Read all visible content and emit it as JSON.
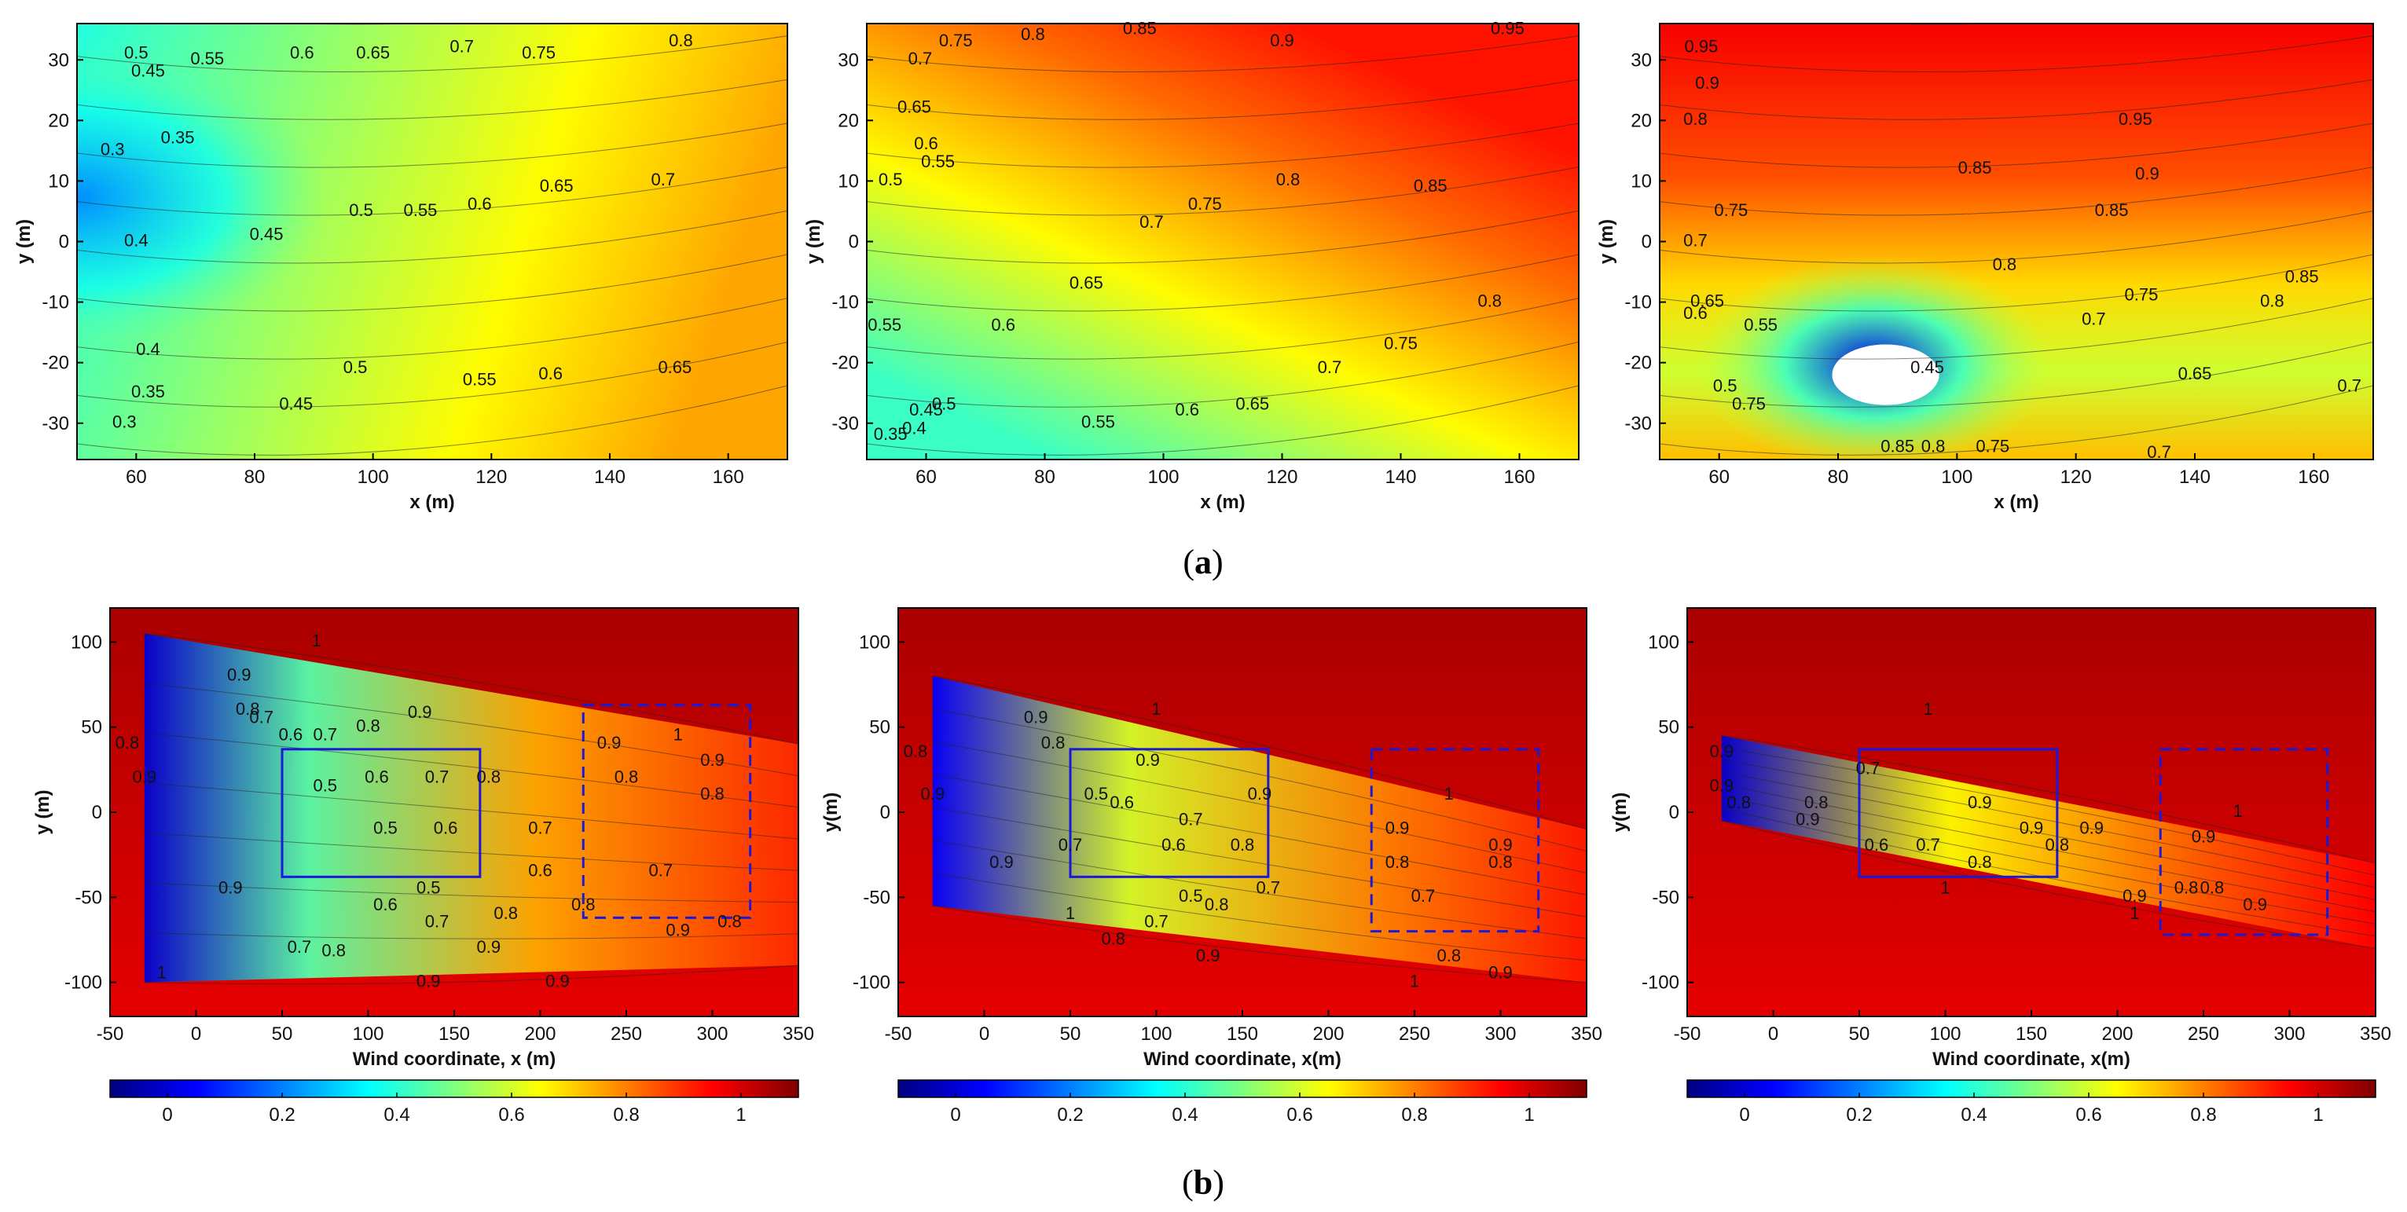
{
  "figure": {
    "caption_a": {
      "open": "(",
      "letter": "a",
      "close": ")"
    },
    "caption_b": {
      "open": "(",
      "letter": "b",
      "close": ")"
    }
  },
  "colors": {
    "colormap": [
      "#00007f",
      "#0000ff",
      "#007fff",
      "#00ffff",
      "#7fff7f",
      "#ffff00",
      "#ff7f00",
      "#ff0000",
      "#7f0000"
    ],
    "rectangle": "#1a1ad6"
  },
  "chart_data": [
    {
      "id": "a1",
      "type": "contour",
      "title": "",
      "xlabel": "x (m)",
      "ylabel": "y (m)",
      "xlim": [
        50,
        170
      ],
      "ylim": [
        -36,
        36
      ],
      "xticks": [
        60,
        80,
        100,
        120,
        140,
        160
      ],
      "yticks": [
        30,
        20,
        10,
        0,
        -10,
        -20,
        -30
      ],
      "field_range": [
        0.25,
        0.8
      ],
      "min_point": [
        52,
        12
      ],
      "contour_labels": [
        {
          "text": "0.5",
          "x": 60,
          "y": 31
        },
        {
          "text": "0.45",
          "x": 62,
          "y": 28
        },
        {
          "text": "0.55",
          "x": 72,
          "y": 30
        },
        {
          "text": "0.6",
          "x": 88,
          "y": 31
        },
        {
          "text": "0.65",
          "x": 100,
          "y": 31
        },
        {
          "text": "0.7",
          "x": 115,
          "y": 32
        },
        {
          "text": "0.75",
          "x": 128,
          "y": 31
        },
        {
          "text": "0.8",
          "x": 152,
          "y": 33
        },
        {
          "text": "0.35",
          "x": 67,
          "y": 17
        },
        {
          "text": "0.3",
          "x": 56,
          "y": 15
        },
        {
          "text": "0.4",
          "x": 60,
          "y": 0
        },
        {
          "text": "0.45",
          "x": 82,
          "y": 1
        },
        {
          "text": "0.5",
          "x": 98,
          "y": 5
        },
        {
          "text": "0.55",
          "x": 108,
          "y": 5
        },
        {
          "text": "0.6",
          "x": 118,
          "y": 6
        },
        {
          "text": "0.65",
          "x": 131,
          "y": 9
        },
        {
          "text": "0.7",
          "x": 149,
          "y": 10
        },
        {
          "text": "0.4",
          "x": 62,
          "y": -18
        },
        {
          "text": "0.35",
          "x": 62,
          "y": -25
        },
        {
          "text": "0.3",
          "x": 58,
          "y": -30
        },
        {
          "text": "0.45",
          "x": 87,
          "y": -27
        },
        {
          "text": "0.5",
          "x": 97,
          "y": -21
        },
        {
          "text": "0.55",
          "x": 118,
          "y": -23
        },
        {
          "text": "0.6",
          "x": 130,
          "y": -22
        },
        {
          "text": "0.65",
          "x": 151,
          "y": -21
        }
      ]
    },
    {
      "id": "a2",
      "type": "contour",
      "title": "",
      "xlabel": "x (m)",
      "ylabel": "y (m)",
      "xlim": [
        50,
        170
      ],
      "ylim": [
        -36,
        36
      ],
      "xticks": [
        60,
        80,
        100,
        120,
        140,
        160
      ],
      "yticks": [
        30,
        20,
        10,
        0,
        -10,
        -20,
        -30
      ],
      "field_range": [
        0.35,
        0.95
      ],
      "contour_labels": [
        {
          "text": "0.75",
          "x": 65,
          "y": 33
        },
        {
          "text": "0.8",
          "x": 78,
          "y": 34
        },
        {
          "text": "0.85",
          "x": 96,
          "y": 35
        },
        {
          "text": "0.9",
          "x": 120,
          "y": 33
        },
        {
          "text": "0.95",
          "x": 158,
          "y": 35
        },
        {
          "text": "0.7",
          "x": 59,
          "y": 30
        },
        {
          "text": "0.65",
          "x": 58,
          "y": 22
        },
        {
          "text": "0.6",
          "x": 60,
          "y": 16
        },
        {
          "text": "0.55",
          "x": 62,
          "y": 13
        },
        {
          "text": "0.5",
          "x": 54,
          "y": 10
        },
        {
          "text": "0.7",
          "x": 98,
          "y": 3
        },
        {
          "text": "0.75",
          "x": 107,
          "y": 6
        },
        {
          "text": "0.8",
          "x": 121,
          "y": 10
        },
        {
          "text": "0.85",
          "x": 145,
          "y": 9
        },
        {
          "text": "0.65",
          "x": 87,
          "y": -7
        },
        {
          "text": "0.6",
          "x": 73,
          "y": -14
        },
        {
          "text": "0.55",
          "x": 53,
          "y": -14
        },
        {
          "text": "0.5",
          "x": 63,
          "y": -27
        },
        {
          "text": "0.45",
          "x": 60,
          "y": -28
        },
        {
          "text": "0.4",
          "x": 58,
          "y": -31
        },
        {
          "text": "0.35",
          "x": 54,
          "y": -32
        },
        {
          "text": "0.8",
          "x": 155,
          "y": -10
        },
        {
          "text": "0.75",
          "x": 140,
          "y": -17
        },
        {
          "text": "0.7",
          "x": 128,
          "y": -21
        },
        {
          "text": "0.65",
          "x": 115,
          "y": -27
        },
        {
          "text": "0.6",
          "x": 104,
          "y": -28
        },
        {
          "text": "0.55",
          "x": 89,
          "y": -30
        }
      ]
    },
    {
      "id": "a3",
      "type": "contour",
      "title": "",
      "xlabel": "x (m)",
      "ylabel": "y (m)",
      "xlim": [
        50,
        170
      ],
      "ylim": [
        -36,
        36
      ],
      "xticks": [
        60,
        80,
        100,
        120,
        140,
        160
      ],
      "yticks": [
        30,
        20,
        10,
        0,
        -10,
        -20,
        -30
      ],
      "field_range": [
        0.0,
        0.95
      ],
      "blank_region": {
        "cx": 88,
        "cy": -22,
        "rx": 9,
        "ry": 5
      },
      "contour_labels": [
        {
          "text": "0.95",
          "x": 57,
          "y": 32
        },
        {
          "text": "0.9",
          "x": 58,
          "y": 26
        },
        {
          "text": "0.8",
          "x": 56,
          "y": 20
        },
        {
          "text": "0.75",
          "x": 62,
          "y": 5
        },
        {
          "text": "0.7",
          "x": 56,
          "y": 0
        },
        {
          "text": "0.95",
          "x": 130,
          "y": 20
        },
        {
          "text": "0.9",
          "x": 132,
          "y": 11
        },
        {
          "text": "0.85",
          "x": 103,
          "y": 12
        },
        {
          "text": "0.85",
          "x": 126,
          "y": 5
        },
        {
          "text": "0.8",
          "x": 108,
          "y": -4
        },
        {
          "text": "0.85",
          "x": 158,
          "y": -6
        },
        {
          "text": "0.8",
          "x": 153,
          "y": -10
        },
        {
          "text": "0.75",
          "x": 131,
          "y": -9
        },
        {
          "text": "0.7",
          "x": 123,
          "y": -13
        },
        {
          "text": "0.65",
          "x": 58,
          "y": -10
        },
        {
          "text": "0.6",
          "x": 56,
          "y": -12
        },
        {
          "text": "0.55",
          "x": 67,
          "y": -14
        },
        {
          "text": "0.65",
          "x": 140,
          "y": -22
        },
        {
          "text": "0.5",
          "x": 61,
          "y": -24
        },
        {
          "text": "0.45",
          "x": 95,
          "y": -21
        },
        {
          "text": "0.75",
          "x": 65,
          "y": -27
        },
        {
          "text": "0.85",
          "x": 90,
          "y": -34
        },
        {
          "text": "0.8",
          "x": 96,
          "y": -34
        },
        {
          "text": "0.75",
          "x": 106,
          "y": -34
        },
        {
          "text": "0.7",
          "x": 134,
          "y": -35
        },
        {
          "text": "0.7",
          "x": 166,
          "y": -24
        }
      ]
    },
    {
      "id": "b1",
      "type": "contour",
      "title": "",
      "xlabel": "Wind coordinate, x (m)",
      "ylabel": "y (m)",
      "xlim": [
        -50,
        350
      ],
      "ylim": [
        -120,
        120
      ],
      "xticks": [
        -50,
        0,
        50,
        100,
        150,
        200,
        250,
        300,
        350
      ],
      "yticks": [
        100,
        50,
        0,
        -50,
        -100
      ],
      "colorbar": {
        "range": [
          -0.1,
          1.1
        ],
        "ticks": [
          0,
          0.2,
          0.4,
          0.6,
          0.8,
          1
        ]
      },
      "rect_solid": {
        "x": [
          50,
          165
        ],
        "y": [
          -38,
          37
        ]
      },
      "rect_dashed": {
        "x": [
          225,
          322
        ],
        "y": [
          -62,
          63
        ]
      },
      "contour_labels": [
        {
          "text": "0.9",
          "x": -30,
          "y": 20
        },
        {
          "text": "0.8",
          "x": -40,
          "y": 40
        },
        {
          "text": "0.9",
          "x": 20,
          "y": -45
        },
        {
          "text": "0.9",
          "x": 25,
          "y": 80
        },
        {
          "text": "0.8",
          "x": 30,
          "y": 60
        },
        {
          "text": "0.7",
          "x": 38,
          "y": 55
        },
        {
          "text": "0.6",
          "x": 55,
          "y": 45
        },
        {
          "text": "0.7",
          "x": 75,
          "y": 45
        },
        {
          "text": "0.8",
          "x": 100,
          "y": 50
        },
        {
          "text": "0.9",
          "x": 130,
          "y": 58
        },
        {
          "text": "0.5",
          "x": 75,
          "y": 15
        },
        {
          "text": "0.6",
          "x": 105,
          "y": 20
        },
        {
          "text": "0.7",
          "x": 140,
          "y": 20
        },
        {
          "text": "0.8",
          "x": 170,
          "y": 20
        },
        {
          "text": "0.5",
          "x": 110,
          "y": -10
        },
        {
          "text": "0.6",
          "x": 145,
          "y": -10
        },
        {
          "text": "0.7",
          "x": 200,
          "y": -10
        },
        {
          "text": "0.8",
          "x": 250,
          "y": 20
        },
        {
          "text": "0.9",
          "x": 240,
          "y": 40
        },
        {
          "text": "0.7",
          "x": 270,
          "y": -35
        },
        {
          "text": "0.8",
          "x": 225,
          "y": -55
        },
        {
          "text": "0.9",
          "x": 280,
          "y": -70
        },
        {
          "text": "0.8",
          "x": 300,
          "y": 10
        },
        {
          "text": "0.9",
          "x": 300,
          "y": 30
        },
        {
          "text": "0.8",
          "x": 310,
          "y": -65
        },
        {
          "text": "0.6",
          "x": 200,
          "y": -35
        },
        {
          "text": "0.5",
          "x": 135,
          "y": -45
        },
        {
          "text": "0.6",
          "x": 110,
          "y": -55
        },
        {
          "text": "0.7",
          "x": 140,
          "y": -65
        },
        {
          "text": "0.8",
          "x": 180,
          "y": -60
        },
        {
          "text": "0.7",
          "x": 60,
          "y": -80
        },
        {
          "text": "0.8",
          "x": 80,
          "y": -82
        },
        {
          "text": "0.9",
          "x": 170,
          "y": -80
        },
        {
          "text": "0.9",
          "x": 135,
          "y": -100
        },
        {
          "text": "0.9",
          "x": 210,
          "y": -100
        },
        {
          "text": "1",
          "x": 70,
          "y": 100
        },
        {
          "text": "1",
          "x": -20,
          "y": -95
        },
        {
          "text": "1",
          "x": 280,
          "y": 45
        }
      ]
    },
    {
      "id": "b2",
      "type": "contour",
      "title": "",
      "xlabel": "Wind coordinate, x(m)",
      "ylabel": "y(m)",
      "xlim": [
        -50,
        350
      ],
      "ylim": [
        -120,
        120
      ],
      "xticks": [
        -50,
        0,
        50,
        100,
        150,
        200,
        250,
        300,
        350
      ],
      "yticks": [
        100,
        50,
        0,
        -50,
        -100
      ],
      "colorbar": {
        "range": [
          -0.1,
          1.1
        ],
        "ticks": [
          0,
          0.2,
          0.4,
          0.6,
          0.8,
          1
        ]
      },
      "rect_solid": {
        "x": [
          50,
          165
        ],
        "y": [
          -38,
          37
        ]
      },
      "rect_dashed": {
        "x": [
          225,
          322
        ],
        "y": [
          -70,
          37
        ]
      },
      "contour_labels": [
        {
          "text": "0.9",
          "x": -30,
          "y": 10
        },
        {
          "text": "0.8",
          "x": -40,
          "y": 35
        },
        {
          "text": "0.9",
          "x": 10,
          "y": -30
        },
        {
          "text": "0.9",
          "x": 30,
          "y": 55
        },
        {
          "text": "0.8",
          "x": 40,
          "y": 40
        },
        {
          "text": "0.7",
          "x": 50,
          "y": -20
        },
        {
          "text": "0.5",
          "x": 65,
          "y": 10
        },
        {
          "text": "0.6",
          "x": 80,
          "y": 5
        },
        {
          "text": "0.9",
          "x": 95,
          "y": 30
        },
        {
          "text": "0.7",
          "x": 120,
          "y": -5
        },
        {
          "text": "0.6",
          "x": 110,
          "y": -20
        },
        {
          "text": "0.8",
          "x": 150,
          "y": -20
        },
        {
          "text": "0.9",
          "x": 160,
          "y": 10
        },
        {
          "text": "0.9",
          "x": 240,
          "y": -10
        },
        {
          "text": "0.8",
          "x": 240,
          "y": -30
        },
        {
          "text": "0.7",
          "x": 255,
          "y": -50
        },
        {
          "text": "0.8",
          "x": 270,
          "y": -85
        },
        {
          "text": "0.9",
          "x": 300,
          "y": -95
        },
        {
          "text": "0.9",
          "x": 300,
          "y": -20
        },
        {
          "text": "0.8",
          "x": 300,
          "y": -30
        },
        {
          "text": "0.7",
          "x": 165,
          "y": -45
        },
        {
          "text": "0.8",
          "x": 135,
          "y": -55
        },
        {
          "text": "0.5",
          "x": 120,
          "y": -50
        },
        {
          "text": "0.7",
          "x": 100,
          "y": -65
        },
        {
          "text": "0.8",
          "x": 75,
          "y": -75
        },
        {
          "text": "0.9",
          "x": 130,
          "y": -85
        },
        {
          "text": "1",
          "x": 100,
          "y": 60
        },
        {
          "text": "1",
          "x": 270,
          "y": 10
        },
        {
          "text": "1",
          "x": 50,
          "y": -60
        },
        {
          "text": "1",
          "x": 250,
          "y": -100
        }
      ]
    },
    {
      "id": "b3",
      "type": "contour",
      "title": "",
      "xlabel": "Wind coordinate, x(m)",
      "ylabel": "y(m)",
      "xlim": [
        -50,
        350
      ],
      "ylim": [
        -120,
        120
      ],
      "xticks": [
        -50,
        0,
        50,
        100,
        150,
        200,
        250,
        300,
        350
      ],
      "yticks": [
        100,
        50,
        0,
        -50,
        -100
      ],
      "colorbar": {
        "range": [
          -0.1,
          1.1
        ],
        "ticks": [
          0,
          0.2,
          0.4,
          0.6,
          0.8,
          1
        ]
      },
      "rect_solid": {
        "x": [
          50,
          165
        ],
        "y": [
          -38,
          37
        ]
      },
      "rect_dashed": {
        "x": [
          225,
          322
        ],
        "y": [
          -72,
          37
        ]
      },
      "contour_labels": [
        {
          "text": "0.9",
          "x": -30,
          "y": 35
        },
        {
          "text": "0.9",
          "x": -30,
          "y": 15
        },
        {
          "text": "0.8",
          "x": -20,
          "y": 5
        },
        {
          "text": "0.9",
          "x": 20,
          "y": -5
        },
        {
          "text": "0.8",
          "x": 25,
          "y": 5
        },
        {
          "text": "0.7",
          "x": 55,
          "y": 25
        },
        {
          "text": "0.6",
          "x": 60,
          "y": -20
        },
        {
          "text": "0.7",
          "x": 90,
          "y": -20
        },
        {
          "text": "0.8",
          "x": 120,
          "y": -30
        },
        {
          "text": "0.9",
          "x": 120,
          "y": 5
        },
        {
          "text": "0.9",
          "x": 150,
          "y": -10
        },
        {
          "text": "0.8",
          "x": 165,
          "y": -20
        },
        {
          "text": "0.9",
          "x": 185,
          "y": -10
        },
        {
          "text": "0.9",
          "x": 250,
          "y": -15
        },
        {
          "text": "0.8",
          "x": 255,
          "y": -45
        },
        {
          "text": "0.9",
          "x": 210,
          "y": -50
        },
        {
          "text": "0.9",
          "x": 280,
          "y": -55
        },
        {
          "text": "0.8",
          "x": 240,
          "y": -45
        },
        {
          "text": "1",
          "x": 100,
          "y": -45
        },
        {
          "text": "1",
          "x": 210,
          "y": -60
        },
        {
          "text": "1",
          "x": 270,
          "y": 0
        },
        {
          "text": "1",
          "x": 90,
          "y": 60
        }
      ]
    }
  ]
}
